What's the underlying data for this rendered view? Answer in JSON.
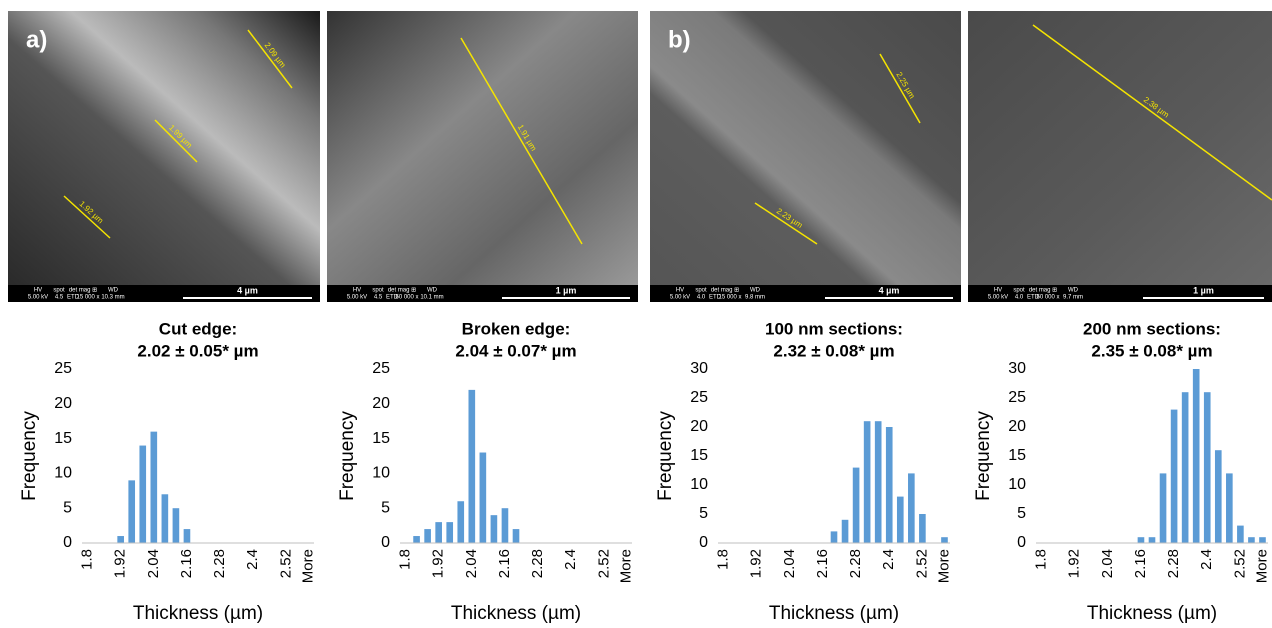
{
  "images": [
    {
      "panel": "a)",
      "measurements": [
        "2.09 µm",
        "1.99 µm",
        "1.92 µm"
      ],
      "info": [
        "HV",
        "5.00 kV",
        "spot",
        "4.5",
        "det",
        "ETD",
        "mag ⊞",
        "15 000 x",
        "WD",
        "10.3 mm"
      ],
      "scale": "4 µm"
    },
    {
      "measurements": [
        "1.91 µm"
      ],
      "info": [
        "HV",
        "5.00 kV",
        "spot",
        "4.5",
        "det",
        "ETD",
        "mag ⊞",
        "60 000 x",
        "WD",
        "10.1 mm"
      ],
      "scale": "1 µm"
    },
    {
      "panel": "b)",
      "measurements": [
        "2.25 µm",
        "2.23 µm"
      ],
      "info": [
        "HV",
        "5.00 kV",
        "spot",
        "4.0",
        "det",
        "ETD",
        "mag ⊞",
        "15 000 x",
        "WD",
        "9.8 mm"
      ],
      "scale": "4 µm"
    },
    {
      "measurements": [
        "2.38 µm"
      ],
      "info": [
        "HV",
        "5.00 kV",
        "spot",
        "4.0",
        "det",
        "ETD",
        "mag ⊞",
        "60 000 x",
        "WD",
        "9.7 mm"
      ],
      "scale": "1 µm"
    }
  ],
  "chart_data": [
    {
      "type": "bar",
      "title": [
        "Cut edge:",
        "2.02 ± 0.05* µm"
      ],
      "xlabel": "Thickness (µm)",
      "ylabel": "Frequency",
      "color": "#5b9bd5",
      "categories": [
        "1.8",
        null,
        null,
        "1.92",
        null,
        null,
        "2.04",
        null,
        null,
        "2.16",
        null,
        null,
        "2.28",
        null,
        null,
        "2.4",
        null,
        null,
        "2.52",
        null,
        "More"
      ],
      "values": [
        0,
        0,
        0,
        1,
        9,
        14,
        16,
        7,
        5,
        2,
        0,
        0,
        0,
        0,
        0,
        0,
        0,
        0,
        0,
        0,
        0
      ],
      "ylim": [
        0,
        25
      ],
      "yticks": [
        0,
        5,
        10,
        15,
        20,
        25
      ]
    },
    {
      "type": "bar",
      "title": [
        "Broken edge:",
        "2.04 ± 0.07* µm"
      ],
      "xlabel": "Thickness (µm)",
      "ylabel": "Frequency",
      "color": "#5b9bd5",
      "categories": [
        "1.8",
        null,
        null,
        "1.92",
        null,
        null,
        "2.04",
        null,
        null,
        "2.16",
        null,
        null,
        "2.28",
        null,
        null,
        "2.4",
        null,
        null,
        "2.52",
        null,
        "More"
      ],
      "values": [
        0,
        1,
        2,
        3,
        3,
        6,
        22,
        13,
        4,
        5,
        2,
        0,
        0,
        0,
        0,
        0,
        0,
        0,
        0,
        0,
        0
      ],
      "ylim": [
        0,
        25
      ],
      "yticks": [
        0,
        5,
        10,
        15,
        20,
        25
      ]
    },
    {
      "type": "bar",
      "title": [
        "100 nm sections:",
        "2.32 ± 0.08* µm"
      ],
      "xlabel": "Thickness (µm)",
      "ylabel": "Frequency",
      "color": "#5b9bd5",
      "categories": [
        "1.8",
        null,
        null,
        "1.92",
        null,
        null,
        "2.04",
        null,
        null,
        "2.16",
        null,
        null,
        "2.28",
        null,
        null,
        "2.4",
        null,
        null,
        "2.52",
        null,
        "More"
      ],
      "values": [
        0,
        0,
        0,
        0,
        0,
        0,
        0,
        0,
        0,
        0,
        2,
        4,
        13,
        21,
        21,
        20,
        8,
        12,
        5,
        0,
        1
      ],
      "ylim": [
        0,
        30
      ],
      "yticks": [
        0,
        5,
        10,
        15,
        20,
        25,
        30
      ]
    },
    {
      "type": "bar",
      "title": [
        "200 nm sections:",
        "2.35 ± 0.08* µm"
      ],
      "xlabel": "Thickness (µm)",
      "ylabel": "Frequency",
      "color": "#5b9bd5",
      "categories": [
        "1.8",
        null,
        null,
        "1.92",
        null,
        null,
        "2.04",
        null,
        null,
        "2.16",
        null,
        null,
        "2.28",
        null,
        null,
        "2.4",
        null,
        null,
        "2.52",
        null,
        "More"
      ],
      "values": [
        0,
        0,
        0,
        0,
        0,
        0,
        0,
        0,
        0,
        1,
        1,
        12,
        23,
        26,
        30,
        26,
        16,
        12,
        3,
        1,
        1
      ],
      "ylim": [
        0,
        30
      ],
      "yticks": [
        0,
        5,
        10,
        15,
        20,
        25,
        30
      ]
    }
  ]
}
